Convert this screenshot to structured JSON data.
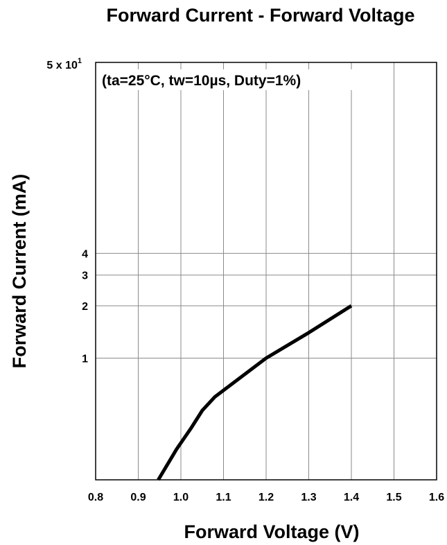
{
  "chart_data": {
    "type": "line",
    "title": "Forward Current - Forward Voltage",
    "annotation": "(ta=25°C, tw=10µs, Duty=1%)",
    "xlabel": "Forward Voltage (V)",
    "ylabel": "Forward Current (mA)",
    "xlim": [
      0.8,
      1.6
    ],
    "ylim": [
      0.2,
      50
    ],
    "y_scale": "log",
    "grid": true,
    "x_ticks": [
      0.8,
      0.9,
      1.0,
      1.1,
      1.2,
      1.3,
      1.4,
      1.5,
      1.6
    ],
    "x_tick_labels": [
      "0.8",
      "0.9",
      "1.0",
      "1.1",
      "1.2",
      "1.3",
      "1.4",
      "1.5",
      "1.6"
    ],
    "y_ticks": [
      1,
      2,
      3,
      4
    ],
    "y_tick_labels": [
      "1",
      "2",
      "3",
      "4"
    ],
    "y_top_label": {
      "base": "5 x 10",
      "exponent": "1",
      "value": 50
    },
    "line_color": "#000000",
    "series": [
      {
        "x": [
          0.947,
          0.99,
          1.025,
          1.05,
          1.08,
          1.2,
          1.3,
          1.4
        ],
        "y": [
          0.2,
          0.3,
          0.4,
          0.5,
          0.6,
          1.0,
          1.4,
          2.0
        ]
      }
    ]
  }
}
